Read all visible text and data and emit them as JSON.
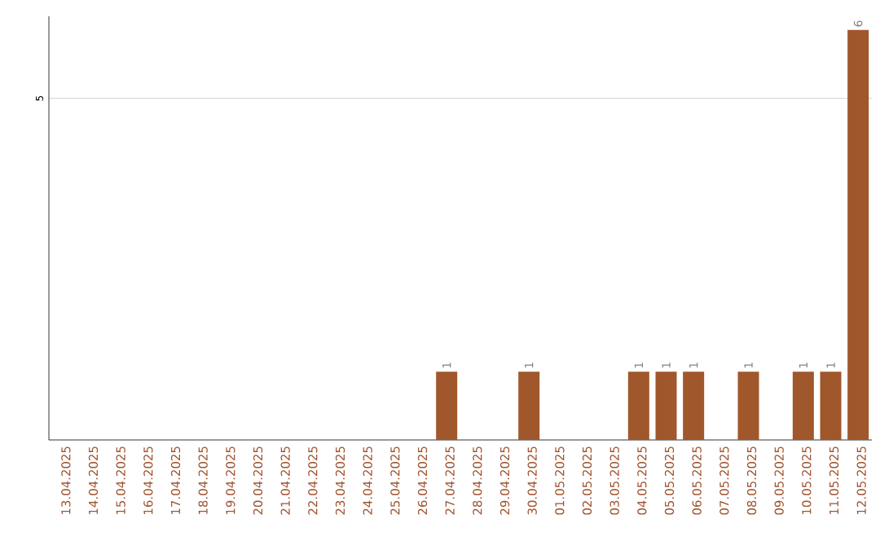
{
  "chart_data": {
    "type": "bar",
    "categories": [
      "13.04.2025",
      "14.04.2025",
      "15.04.2025",
      "16.04.2025",
      "17.04.2025",
      "18.04.2025",
      "19.04.2025",
      "20.04.2025",
      "21.04.2025",
      "22.04.2025",
      "23.04.2025",
      "24.04.2025",
      "25.04.2025",
      "26.04.2025",
      "27.04.2025",
      "28.04.2025",
      "29.04.2025",
      "30.04.2025",
      "01.05.2025",
      "02.05.2025",
      "03.05.2025",
      "04.05.2025",
      "05.05.2025",
      "06.05.2025",
      "07.05.2025",
      "08.05.2025",
      "09.05.2025",
      "10.05.2025",
      "11.05.2025",
      "12.05.2025"
    ],
    "values": [
      null,
      null,
      null,
      null,
      null,
      null,
      null,
      null,
      null,
      null,
      null,
      null,
      null,
      null,
      1,
      null,
      null,
      1,
      null,
      null,
      null,
      1,
      1,
      1,
      null,
      1,
      null,
      1,
      1,
      6
    ],
    "data_labels": true,
    "color": "#a0572b",
    "ylim": [
      0,
      6.2
    ],
    "yticks": [
      5
    ],
    "grid": "y"
  }
}
